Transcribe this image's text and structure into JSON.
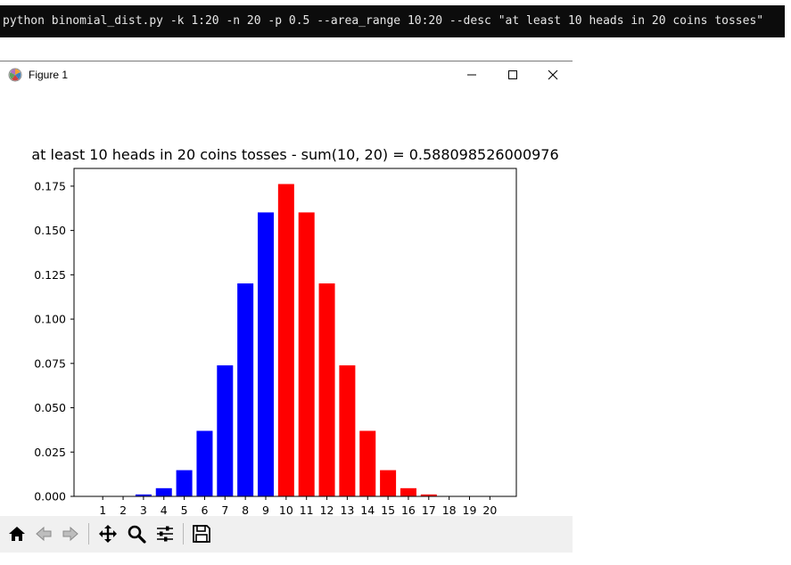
{
  "terminal": {
    "command": "python binomial_dist.py -k 1:20 -n 20 -p 0.5 --area_range 10:20 --desc \"at least 10 heads in 20 coins tosses\""
  },
  "window": {
    "title": "Figure 1",
    "icon": "matplotlib-icon",
    "controls": [
      "minimize-icon",
      "maximize-icon",
      "close-icon"
    ]
  },
  "toolbar": {
    "buttons": [
      "home-icon",
      "back-icon",
      "forward-icon",
      "pan-icon",
      "zoom-icon",
      "configure-subplots-icon",
      "save-icon"
    ]
  },
  "chart_data": {
    "type": "bar",
    "title": "at least 10 heads in 20 coins tosses - sum(10, 20) = 0.588098526000976",
    "xlabel": "",
    "ylabel": "",
    "categories": [
      "1",
      "2",
      "3",
      "4",
      "5",
      "6",
      "7",
      "8",
      "9",
      "10",
      "11",
      "12",
      "13",
      "14",
      "15",
      "16",
      "17",
      "18",
      "19",
      "20"
    ],
    "values": [
      1.9e-05,
      0.000181,
      0.001087,
      0.004621,
      0.014786,
      0.036964,
      0.073929,
      0.120134,
      0.160179,
      0.176197,
      0.160179,
      0.120134,
      0.073929,
      0.036964,
      0.014786,
      0.004621,
      0.001087,
      0.000181,
      1.9e-05,
      1e-06
    ],
    "highlight_range": [
      10,
      20
    ],
    "colors": {
      "base": "#0000ff",
      "highlight": "#ff0000"
    },
    "ylim": [
      0,
      0.185
    ],
    "yticks": [
      "0.000",
      "0.025",
      "0.050",
      "0.075",
      "0.100",
      "0.125",
      "0.150",
      "0.175"
    ],
    "grid": false
  }
}
